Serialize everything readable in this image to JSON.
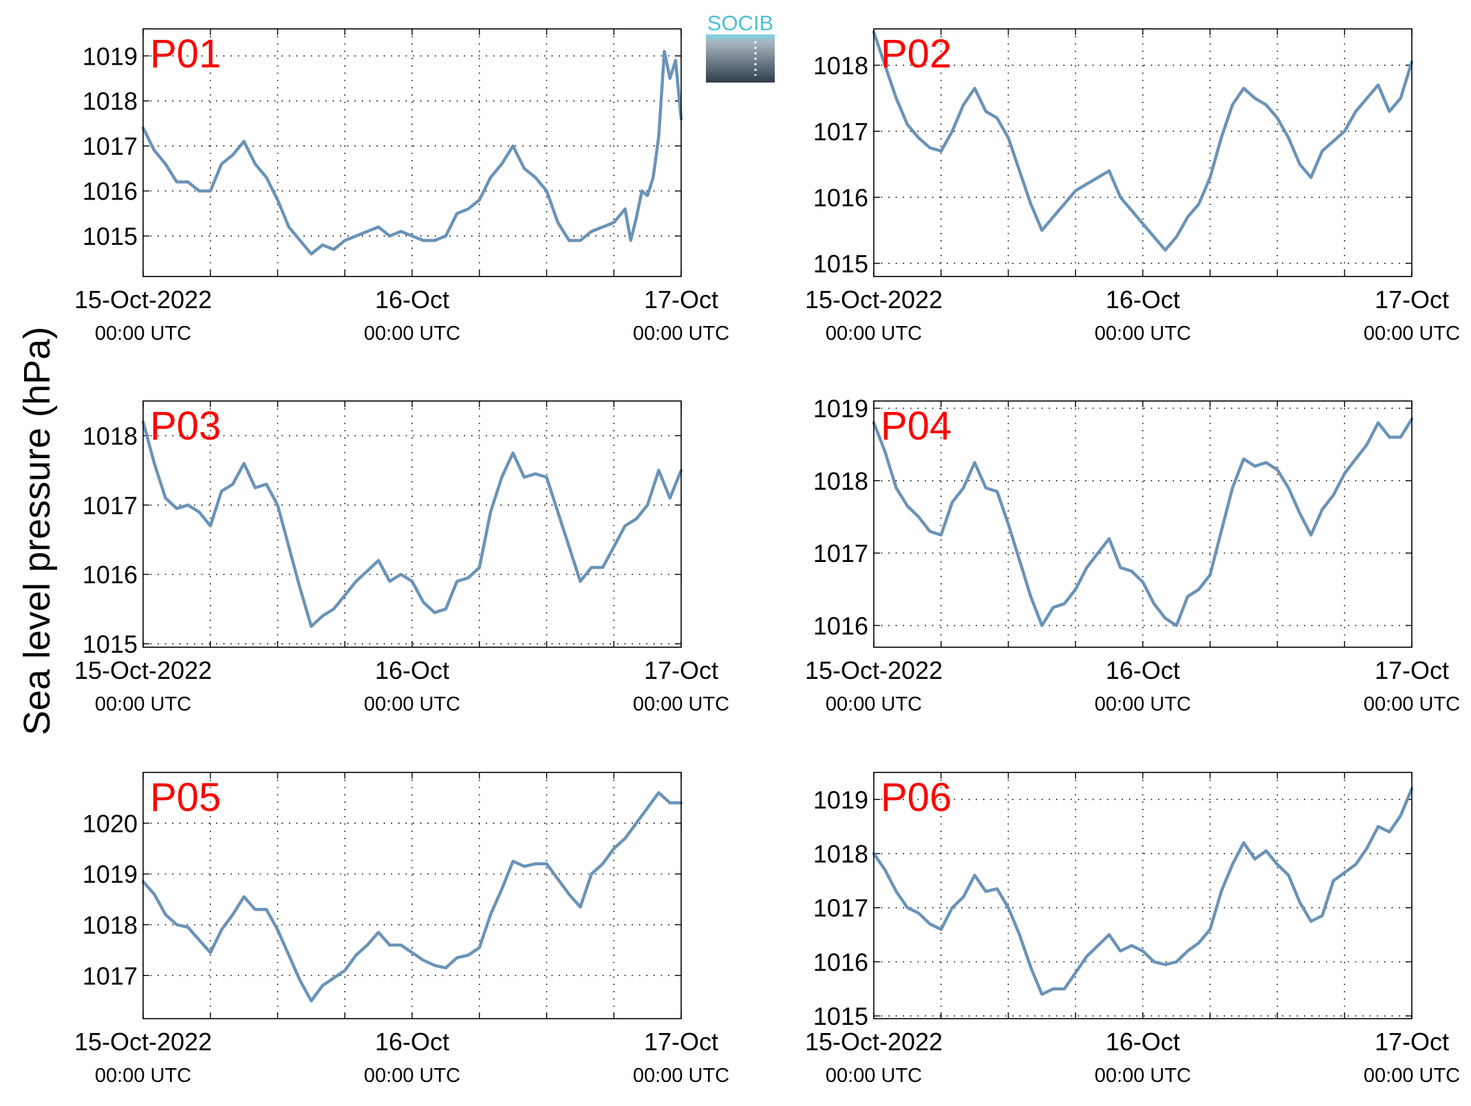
{
  "figure": {
    "ylabel": "Sea level pressure (hPa)",
    "logo_text": "SOCIB",
    "colors": {
      "line": "#6a93b8",
      "panel_label": "#ff0000",
      "axis": "#000000",
      "grid": "#000000"
    }
  },
  "chart_data": [
    {
      "type": "line",
      "title": "P01",
      "x_ticks": [
        {
          "label": "15-Oct-2022",
          "sub": "00:00 UTC",
          "t": 0
        },
        {
          "label": "16-Oct",
          "sub": "00:00 UTC",
          "t": 24
        },
        {
          "label": "17-Oct",
          "sub": "00:00 UTC",
          "t": 48
        }
      ],
      "xlim": [
        0,
        48
      ],
      "ylim": [
        1014.1,
        1019.6
      ],
      "yticks": [
        1015,
        1016,
        1017,
        1018,
        1019
      ],
      "x_grid": [
        0,
        6,
        12,
        18,
        24,
        30,
        36,
        42,
        48
      ],
      "grid": "dotted",
      "series": [
        {
          "x": [
            0,
            1,
            2,
            3,
            4,
            5,
            6,
            7,
            8,
            9,
            10,
            11,
            12,
            13,
            14,
            15,
            16,
            17,
            18,
            19,
            20,
            21,
            22,
            23,
            24,
            25,
            26,
            27,
            28,
            29,
            30,
            31,
            32,
            33,
            34,
            35,
            36,
            37,
            38,
            39,
            40,
            41,
            42,
            43,
            43.5,
            44,
            44.5,
            45,
            45.5,
            46,
            46.5,
            47,
            47.5,
            48
          ],
          "y": [
            1017.4,
            1016.9,
            1016.6,
            1016.2,
            1016.2,
            1016.0,
            1016.0,
            1016.6,
            1016.8,
            1017.1,
            1016.6,
            1016.3,
            1015.8,
            1015.2,
            1014.9,
            1014.6,
            1014.8,
            1014.7,
            1014.9,
            1015.0,
            1015.1,
            1015.2,
            1015.0,
            1015.1,
            1015.0,
            1014.9,
            1014.9,
            1015.0,
            1015.5,
            1015.6,
            1015.8,
            1016.3,
            1016.6,
            1017.0,
            1016.5,
            1016.3,
            1016.0,
            1015.3,
            1014.9,
            1014.9,
            1015.1,
            1015.2,
            1015.3,
            1015.6,
            1014.9,
            1015.4,
            1016.0,
            1015.9,
            1016.3,
            1017.2,
            1019.1,
            1018.5,
            1018.9,
            1017.6
          ]
        }
      ]
    },
    {
      "type": "line",
      "title": "P02",
      "x_ticks": [
        {
          "label": "15-Oct-2022",
          "sub": "00:00 UTC",
          "t": 0
        },
        {
          "label": "16-Oct",
          "sub": "00:00 UTC",
          "t": 24
        },
        {
          "label": "17-Oct",
          "sub": "00:00 UTC",
          "t": 48
        }
      ],
      "xlim": [
        0,
        48
      ],
      "ylim": [
        1014.8,
        1018.55
      ],
      "yticks": [
        1015,
        1016,
        1017,
        1018
      ],
      "x_grid": [
        0,
        6,
        12,
        18,
        24,
        30,
        36,
        42,
        48
      ],
      "grid": "dotted",
      "series": [
        {
          "x": [
            0,
            1,
            2,
            3,
            4,
            5,
            6,
            7,
            8,
            9,
            10,
            11,
            12,
            13,
            14,
            15,
            16,
            17,
            18,
            19,
            20,
            21,
            22,
            23,
            24,
            25,
            26,
            27,
            28,
            29,
            30,
            31,
            32,
            33,
            34,
            35,
            36,
            37,
            38,
            39,
            40,
            41,
            42,
            43,
            44,
            45,
            46,
            47,
            48
          ],
          "y": [
            1018.5,
            1018.0,
            1017.5,
            1017.1,
            1016.9,
            1016.75,
            1016.7,
            1017.0,
            1017.4,
            1017.65,
            1017.3,
            1017.2,
            1016.9,
            1016.4,
            1015.9,
            1015.5,
            1015.7,
            1015.9,
            1016.1,
            1016.2,
            1016.3,
            1016.4,
            1016.0,
            1015.8,
            1015.6,
            1015.4,
            1015.2,
            1015.4,
            1015.7,
            1015.9,
            1016.3,
            1016.9,
            1017.4,
            1017.65,
            1017.5,
            1017.4,
            1017.2,
            1016.9,
            1016.5,
            1016.3,
            1016.7,
            1016.85,
            1017.0,
            1017.3,
            1017.5,
            1017.7,
            1017.3,
            1017.5,
            1018.05
          ]
        }
      ]
    },
    {
      "type": "line",
      "title": "P03",
      "x_ticks": [
        {
          "label": "15-Oct-2022",
          "sub": "00:00 UTC",
          "t": 0
        },
        {
          "label": "16-Oct",
          "sub": "00:00 UTC",
          "t": 24
        },
        {
          "label": "17-Oct",
          "sub": "00:00 UTC",
          "t": 48
        }
      ],
      "xlim": [
        0,
        48
      ],
      "ylim": [
        1014.95,
        1018.5
      ],
      "yticks": [
        1015,
        1016,
        1017,
        1018
      ],
      "x_grid": [
        0,
        6,
        12,
        18,
        24,
        30,
        36,
        42,
        48
      ],
      "grid": "dotted",
      "series": [
        {
          "x": [
            0,
            1,
            2,
            3,
            4,
            5,
            6,
            7,
            8,
            9,
            10,
            11,
            12,
            13,
            14,
            15,
            16,
            17,
            18,
            19,
            20,
            21,
            22,
            23,
            24,
            25,
            26,
            27,
            28,
            29,
            30,
            31,
            32,
            33,
            34,
            35,
            36,
            37,
            38,
            39,
            40,
            41,
            42,
            43,
            44,
            45,
            46,
            47,
            48
          ],
          "y": [
            1018.2,
            1017.6,
            1017.1,
            1016.95,
            1017.0,
            1016.9,
            1016.7,
            1017.2,
            1017.3,
            1017.6,
            1017.25,
            1017.3,
            1017.0,
            1016.4,
            1015.8,
            1015.25,
            1015.4,
            1015.5,
            1015.7,
            1015.9,
            1016.05,
            1016.2,
            1015.9,
            1016.0,
            1015.9,
            1015.6,
            1015.45,
            1015.5,
            1015.9,
            1015.95,
            1016.1,
            1016.9,
            1017.4,
            1017.75,
            1017.4,
            1017.45,
            1017.4,
            1016.9,
            1016.4,
            1015.9,
            1016.1,
            1016.1,
            1016.4,
            1016.7,
            1016.8,
            1017.0,
            1017.5,
            1017.1,
            1017.5
          ]
        }
      ]
    },
    {
      "type": "line",
      "title": "P04",
      "x_ticks": [
        {
          "label": "15-Oct-2022",
          "sub": "00:00 UTC",
          "t": 0
        },
        {
          "label": "16-Oct",
          "sub": "00:00 UTC",
          "t": 24
        },
        {
          "label": "17-Oct",
          "sub": "00:00 UTC",
          "t": 48
        }
      ],
      "xlim": [
        0,
        48
      ],
      "ylim": [
        1015.7,
        1019.1
      ],
      "yticks": [
        1016,
        1017,
        1018,
        1019
      ],
      "x_grid": [
        0,
        6,
        12,
        18,
        24,
        30,
        36,
        42,
        48
      ],
      "grid": "dotted",
      "series": [
        {
          "x": [
            0,
            1,
            2,
            3,
            4,
            5,
            6,
            7,
            8,
            9,
            10,
            11,
            12,
            13,
            14,
            15,
            16,
            17,
            18,
            19,
            20,
            21,
            22,
            23,
            24,
            25,
            26,
            27,
            28,
            29,
            30,
            31,
            32,
            33,
            34,
            35,
            36,
            37,
            38,
            39,
            40,
            41,
            42,
            43,
            44,
            45,
            46,
            47,
            48
          ],
          "y": [
            1018.8,
            1018.4,
            1017.9,
            1017.65,
            1017.5,
            1017.3,
            1017.25,
            1017.7,
            1017.9,
            1018.25,
            1017.9,
            1017.85,
            1017.4,
            1016.9,
            1016.4,
            1016.0,
            1016.25,
            1016.3,
            1016.5,
            1016.8,
            1017.0,
            1017.2,
            1016.8,
            1016.75,
            1016.6,
            1016.3,
            1016.1,
            1016.0,
            1016.4,
            1016.5,
            1016.7,
            1017.3,
            1017.9,
            1018.3,
            1018.2,
            1018.25,
            1018.15,
            1017.9,
            1017.55,
            1017.25,
            1017.6,
            1017.8,
            1018.1,
            1018.3,
            1018.5,
            1018.8,
            1018.6,
            1018.6,
            1018.85
          ]
        }
      ]
    },
    {
      "type": "line",
      "title": "P05",
      "x_ticks": [
        {
          "label": "15-Oct-2022",
          "sub": "00:00 UTC",
          "t": 0
        },
        {
          "label": "16-Oct",
          "sub": "00:00 UTC",
          "t": 24
        },
        {
          "label": "17-Oct",
          "sub": "00:00 UTC",
          "t": 48
        }
      ],
      "xlim": [
        0,
        48
      ],
      "ylim": [
        1016.15,
        1021.0
      ],
      "yticks": [
        1017,
        1018,
        1019,
        1020
      ],
      "x_grid": [
        0,
        6,
        12,
        18,
        24,
        30,
        36,
        42,
        48
      ],
      "grid": "dotted",
      "series": [
        {
          "x": [
            0,
            1,
            2,
            3,
            4,
            5,
            6,
            7,
            8,
            9,
            10,
            11,
            12,
            13,
            14,
            15,
            16,
            17,
            18,
            19,
            20,
            21,
            22,
            23,
            24,
            25,
            26,
            27,
            28,
            29,
            30,
            31,
            32,
            33,
            34,
            35,
            36,
            37,
            38,
            39,
            40,
            41,
            42,
            43,
            44,
            45,
            46,
            47,
            48
          ],
          "y": [
            1018.85,
            1018.6,
            1018.2,
            1018.0,
            1017.95,
            1017.7,
            1017.45,
            1017.9,
            1018.2,
            1018.55,
            1018.3,
            1018.3,
            1017.9,
            1017.4,
            1016.9,
            1016.5,
            1016.8,
            1016.95,
            1017.1,
            1017.4,
            1017.6,
            1017.85,
            1017.6,
            1017.6,
            1017.45,
            1017.3,
            1017.2,
            1017.15,
            1017.35,
            1017.4,
            1017.55,
            1018.2,
            1018.7,
            1019.25,
            1019.15,
            1019.2,
            1019.2,
            1018.9,
            1018.6,
            1018.35,
            1019.0,
            1019.2,
            1019.5,
            1019.7,
            1020.0,
            1020.3,
            1020.6,
            1020.4,
            1020.4
          ]
        }
      ]
    },
    {
      "type": "line",
      "title": "P06",
      "x_ticks": [
        {
          "label": "15-Oct-2022",
          "sub": "00:00 UTC",
          "t": 0
        },
        {
          "label": "16-Oct",
          "sub": "00:00 UTC",
          "t": 24
        },
        {
          "label": "17-Oct",
          "sub": "00:00 UTC",
          "t": 48
        }
      ],
      "xlim": [
        0,
        48
      ],
      "ylim": [
        1014.95,
        1019.5
      ],
      "yticks": [
        1015,
        1016,
        1017,
        1018,
        1019
      ],
      "x_grid": [
        0,
        6,
        12,
        18,
        24,
        30,
        36,
        42,
        48
      ],
      "grid": "dotted",
      "series": [
        {
          "x": [
            0,
            1,
            2,
            3,
            4,
            5,
            6,
            7,
            8,
            9,
            10,
            11,
            12,
            13,
            14,
            15,
            16,
            17,
            18,
            19,
            20,
            21,
            22,
            23,
            24,
            25,
            26,
            27,
            28,
            29,
            30,
            31,
            32,
            33,
            34,
            35,
            36,
            37,
            38,
            39,
            40,
            41,
            42,
            43,
            44,
            45,
            46,
            47,
            48
          ],
          "y": [
            1018.0,
            1017.7,
            1017.3,
            1017.0,
            1016.9,
            1016.7,
            1016.6,
            1017.0,
            1017.2,
            1017.6,
            1017.3,
            1017.35,
            1017.0,
            1016.5,
            1015.9,
            1015.4,
            1015.5,
            1015.5,
            1015.8,
            1016.1,
            1016.3,
            1016.5,
            1016.2,
            1016.3,
            1016.2,
            1016.0,
            1015.95,
            1016.0,
            1016.2,
            1016.35,
            1016.6,
            1017.3,
            1017.8,
            1018.2,
            1017.9,
            1018.05,
            1017.8,
            1017.6,
            1017.1,
            1016.75,
            1016.85,
            1017.5,
            1017.65,
            1017.8,
            1018.1,
            1018.5,
            1018.4,
            1018.7,
            1019.2
          ]
        }
      ]
    }
  ]
}
